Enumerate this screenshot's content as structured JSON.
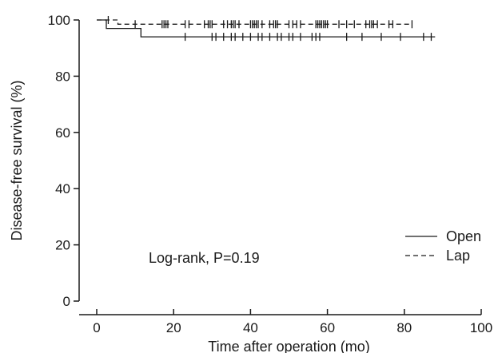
{
  "chart_data": {
    "type": "line",
    "subtype": "kaplan-meier",
    "xlabel": "Time after operation (mo)",
    "ylabel": "Disease-free survival (%)",
    "xlim": [
      0,
      100
    ],
    "ylim": [
      0,
      100
    ],
    "xticks": [
      0,
      20,
      40,
      60,
      80,
      100
    ],
    "yticks": [
      0,
      20,
      40,
      60,
      80,
      100
    ],
    "grid": false,
    "legend_position": "bottom-right",
    "annotation": "Log-rank, P=0.19",
    "colors": {
      "line": "#1a1a1a",
      "axis": "#1a1a1a"
    },
    "series": [
      {
        "name": "Open",
        "style": "solid",
        "steps": [
          [
            0,
            100
          ],
          [
            2.5,
            100
          ],
          [
            2.5,
            97
          ],
          [
            11.5,
            97
          ],
          [
            11.5,
            94
          ],
          [
            88,
            94
          ]
        ],
        "censored": [
          23,
          30,
          31,
          33,
          35,
          36,
          38,
          40,
          42,
          43,
          45,
          47,
          48,
          50,
          51,
          53,
          56,
          57,
          58,
          65,
          69,
          74,
          79,
          85,
          87
        ]
      },
      {
        "name": "Lap",
        "style": "dashed",
        "steps": [
          [
            0,
            100
          ],
          [
            5.5,
            100
          ],
          [
            5.5,
            98.5
          ],
          [
            82,
            98.5
          ]
        ],
        "censored": [
          3,
          10,
          17,
          17.5,
          18,
          18.5,
          23,
          24,
          28,
          29,
          29.5,
          30,
          33,
          34,
          35,
          35.5,
          36,
          37,
          40,
          40.5,
          41,
          41.5,
          42,
          43,
          45,
          46,
          46.5,
          47,
          50,
          51,
          52,
          53,
          57,
          57.5,
          58,
          58.5,
          59,
          59.5,
          60,
          63,
          65,
          67,
          70,
          71,
          71.5,
          72,
          73,
          76,
          77,
          82
        ]
      }
    ]
  }
}
